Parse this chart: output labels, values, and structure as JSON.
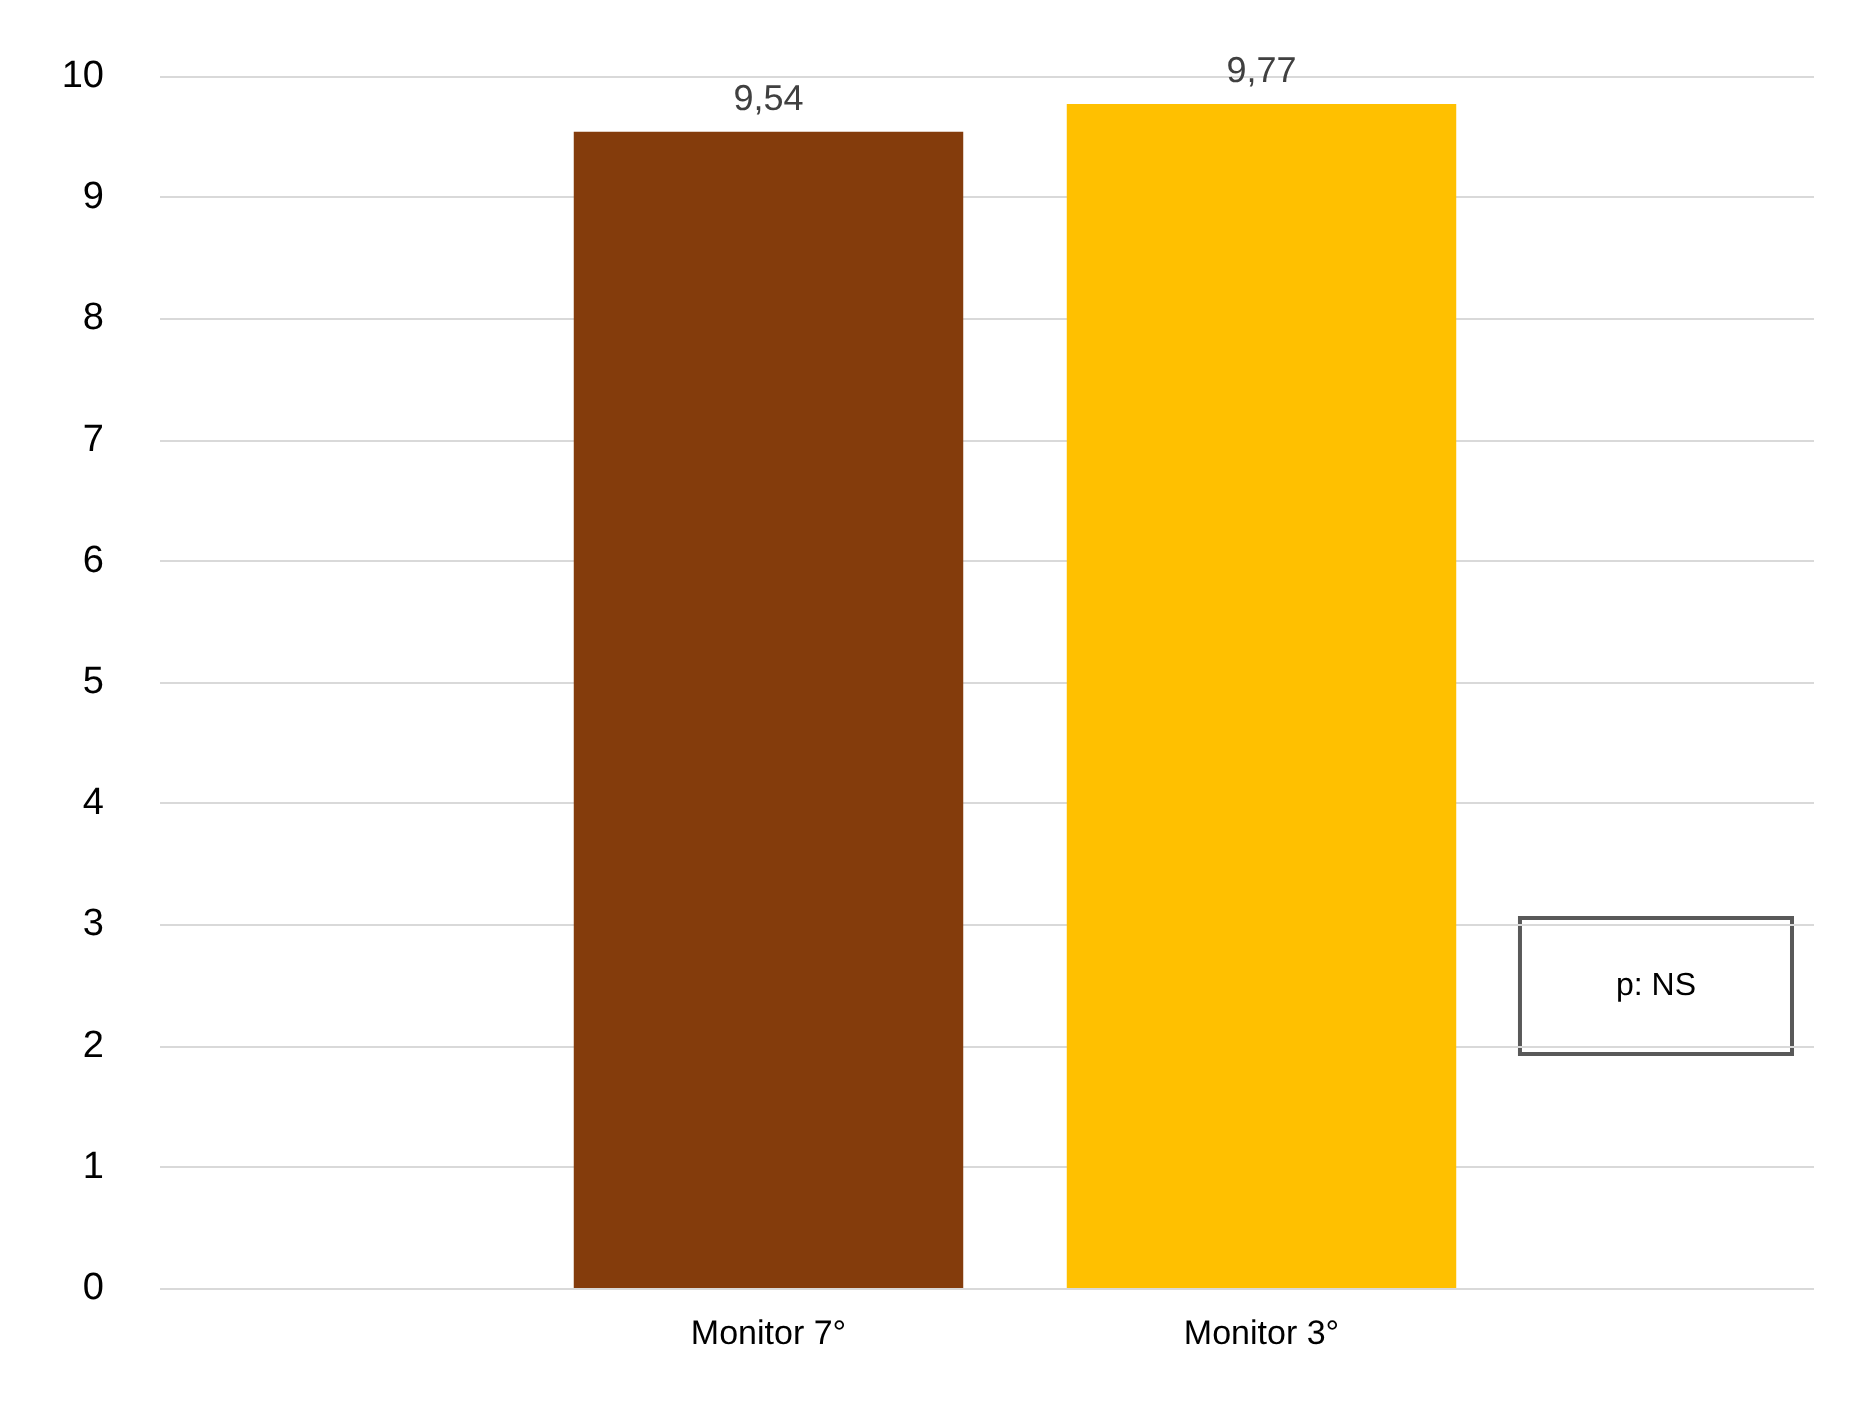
{
  "chart_data": {
    "type": "bar",
    "categories": [
      "Monitor 7°",
      "Monitor 3°"
    ],
    "values": [
      9.54,
      9.77
    ],
    "colors": [
      "#843c0c",
      "#ffc000"
    ],
    "value_labels": [
      "9,54",
      "9,77"
    ],
    "ylim": [
      0,
      10
    ],
    "yticks": [
      0,
      1,
      2,
      3,
      4,
      5,
      6,
      7,
      8,
      9,
      10
    ],
    "grid": "y",
    "annotations": [
      "p: NS"
    ]
  }
}
